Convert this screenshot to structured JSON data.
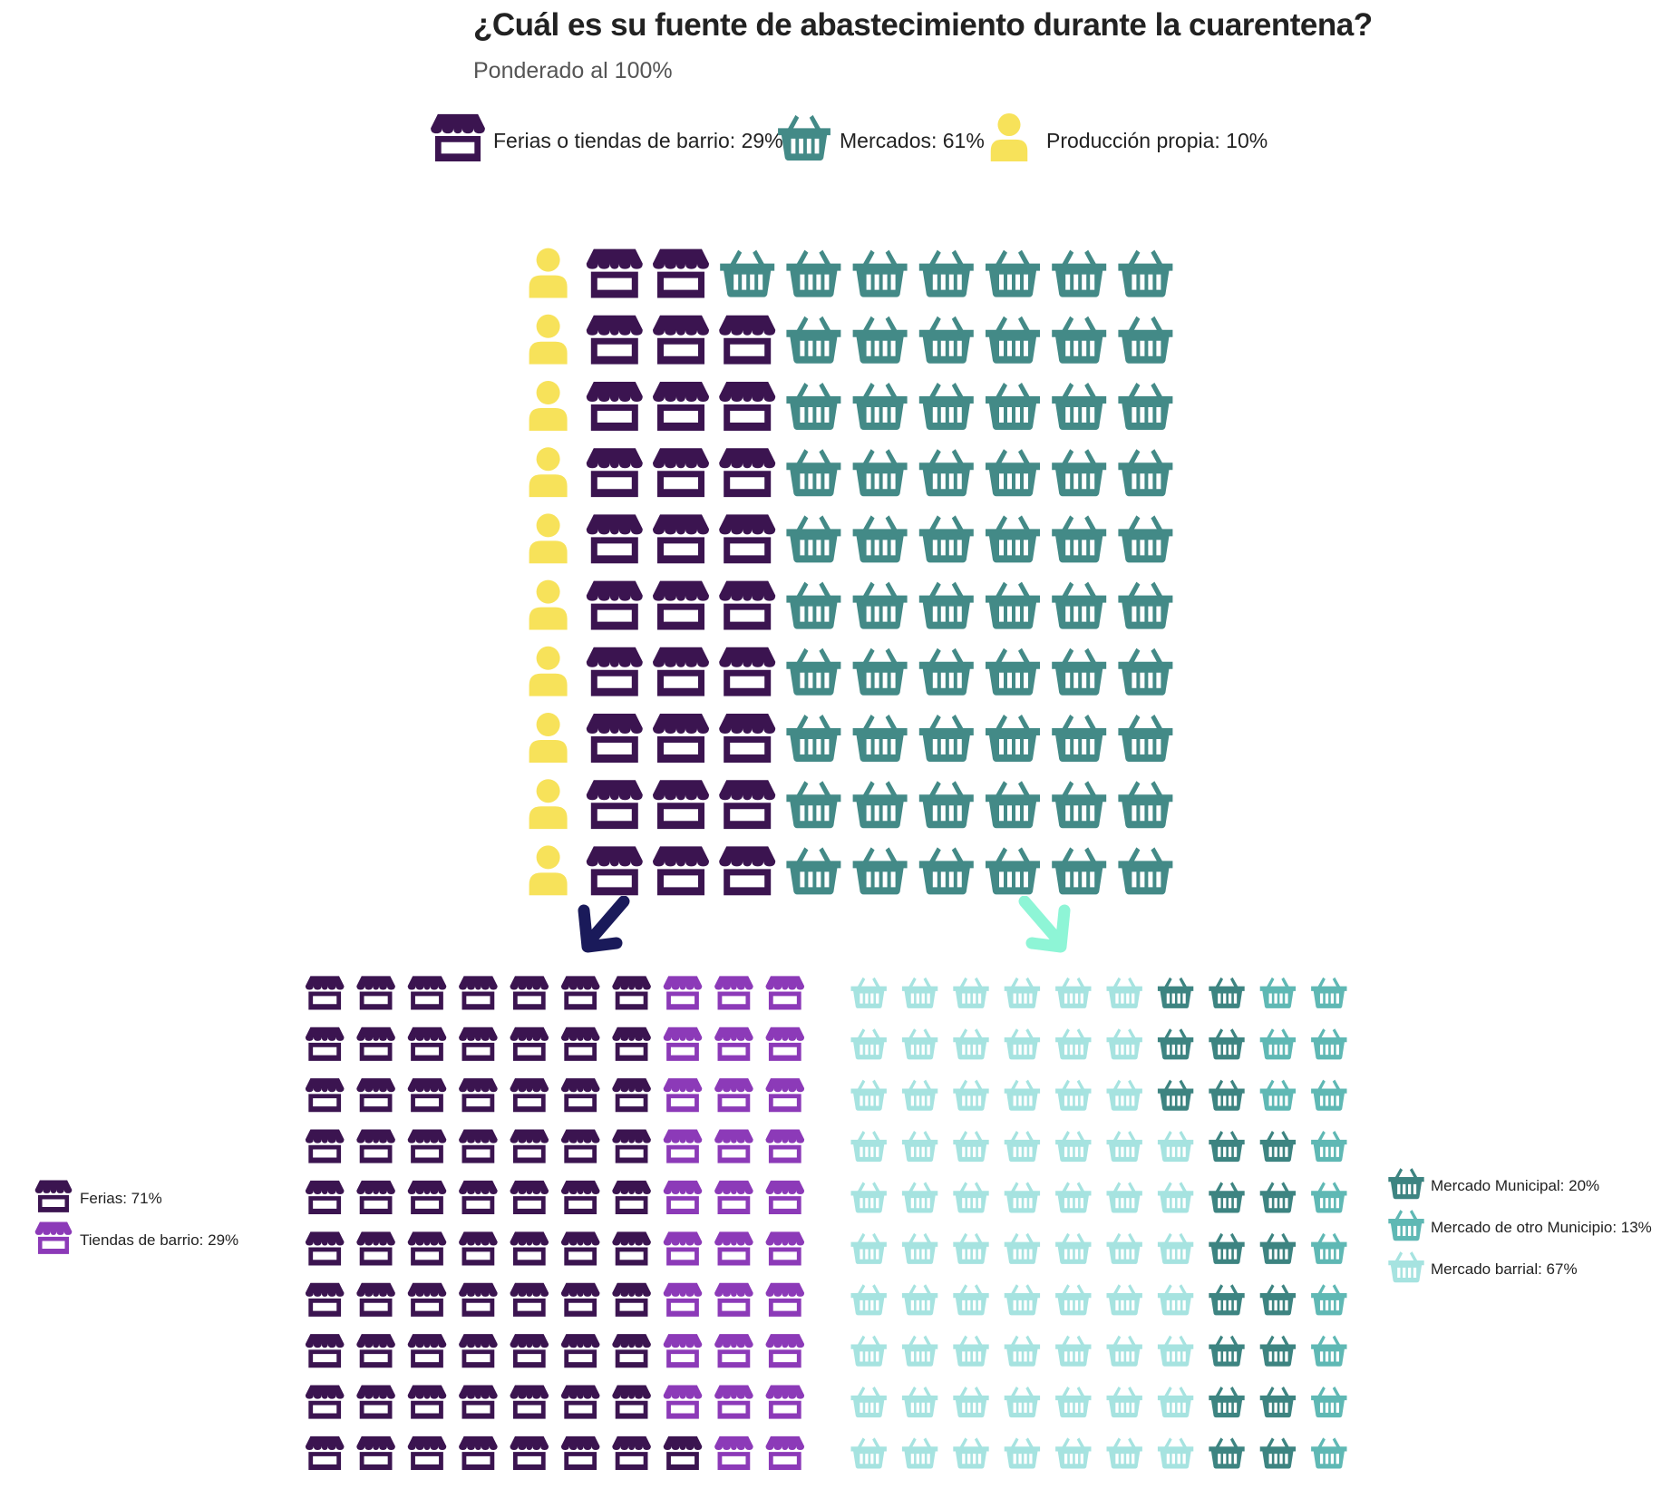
{
  "title": "¿Cuál es su fuente de abastecimiento durante la cuarentena?",
  "subtitle": "Ponderado al 100%",
  "colors": {
    "ferias_tiendas": "#3b1450",
    "mercados": "#438a87",
    "produccion": "#f7e25a",
    "ferias": "#3b1450",
    "tiendas": "#8c3ab8",
    "mercado_municipal": "#3d8481",
    "mercado_otro": "#5fb8b4",
    "mercado_barrial": "#a6e3e0",
    "arrow_left": "#1a1a5a",
    "arrow_right": "#8ef5d6"
  },
  "legend_main": [
    {
      "icon": "store-icon",
      "label": "Ferias o tiendas de barrio: 29%"
    },
    {
      "icon": "basket-icon",
      "label": "Mercados: 61%"
    },
    {
      "icon": "person-icon",
      "label": "Producción propia: 10%"
    }
  ],
  "legend_left": [
    {
      "icon": "store-icon",
      "label": "Ferias: 71%"
    },
    {
      "icon": "store-icon",
      "label": "Tiendas de barrio: 29%"
    }
  ],
  "legend_right": [
    {
      "icon": "basket-icon",
      "label": "Mercado Municipal: 20%"
    },
    {
      "icon": "basket-icon",
      "label": "Mercado de otro Municipio: 13%"
    },
    {
      "icon": "basket-icon",
      "label": "Mercado barrial: 67%"
    }
  ],
  "chart_data": [
    {
      "type": "waffle",
      "title": "¿Cuál es su fuente de abastecimiento durante la cuarentena?",
      "subtitle": "Ponderado al 100%",
      "series": [
        {
          "name": "Ferias o tiendas de barrio",
          "value": 29
        },
        {
          "name": "Mercados",
          "value": 61
        },
        {
          "name": "Producción propia",
          "value": 10
        }
      ],
      "grid": {
        "rows": 10,
        "cols": 10
      },
      "legend_position": "top"
    },
    {
      "type": "waffle",
      "series": [
        {
          "name": "Ferias",
          "value": 71
        },
        {
          "name": "Tiendas de barrio",
          "value": 29
        }
      ],
      "grid": {
        "rows": 10,
        "cols": 10
      },
      "legend_position": "left"
    },
    {
      "type": "waffle",
      "series": [
        {
          "name": "Mercado Municipal",
          "value": 20
        },
        {
          "name": "Mercado de otro Municipio",
          "value": 13
        },
        {
          "name": "Mercado barrial",
          "value": 67
        }
      ],
      "grid": {
        "rows": 10,
        "cols": 10
      },
      "legend_position": "right"
    }
  ]
}
